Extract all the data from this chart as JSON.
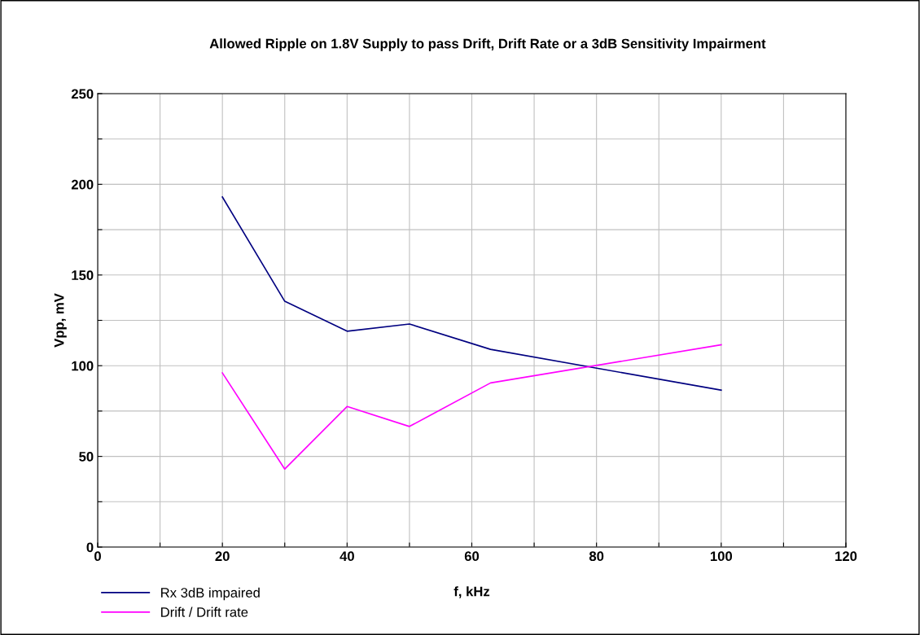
{
  "chart_data": {
    "type": "line",
    "title": "Allowed Ripple on 1.8V Supply to pass Drift, Drift Rate or a 3dB Sensitivity Impairment",
    "xlabel": "f, kHz",
    "ylabel": "Vpp, mV",
    "x": [
      20,
      30,
      40,
      50,
      63,
      100
    ],
    "series": [
      {
        "name": "Rx 3dB impaired",
        "color": "#000080",
        "values": [
          193,
          135.5,
          119,
          123,
          109,
          86.5
        ]
      },
      {
        "name": "Drift / Drift rate",
        "color": "#ff00ff",
        "values": [
          96,
          43,
          77.5,
          66.5,
          90.5,
          111.5
        ]
      }
    ],
    "xlim": [
      0,
      120
    ],
    "xticks": [
      0,
      {
        "value": 10,
        "label": null
      },
      20,
      {
        "value": 30,
        "label": null
      },
      40,
      {
        "value": 50,
        "label": null
      },
      60,
      {
        "value": 70,
        "label": null
      },
      80,
      {
        "value": 90,
        "label": null
      },
      100,
      {
        "value": 110,
        "label": null
      },
      120
    ],
    "ylim": [
      0,
      250
    ],
    "yticks": [
      0,
      {
        "value": 25,
        "label": null
      },
      50,
      {
        "value": 75,
        "label": null
      },
      100,
      {
        "value": 125,
        "label": null
      },
      150,
      {
        "value": 175,
        "label": null
      },
      200,
      {
        "value": 225,
        "label": null
      },
      250
    ],
    "grid": true,
    "legend": "bottom left",
    "marker": "none",
    "line_style": "solid"
  }
}
